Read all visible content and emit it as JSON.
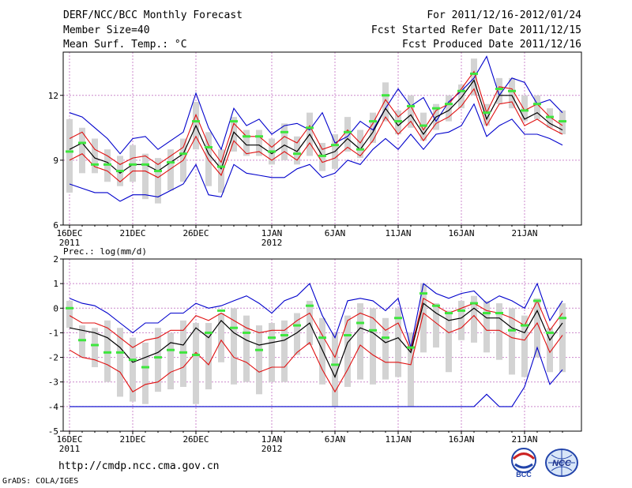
{
  "header": {
    "title": "DERF/NCC/BCC Monthly Forecast",
    "member_size": "Member Size=40",
    "variable": "Mean Surf. Temp.: °C",
    "period": "For 2011/12/16-2012/01/24",
    "started": "Fcst Started Refer Date 2011/12/15",
    "produced": "Fcst Produced Date 2011/12/16"
  },
  "footer": {
    "url": "http://cmdp.ncc.cma.gov.cn",
    "grads": "GrADS: COLA/IGES",
    "logo_left": "BCC",
    "logo_right": "NCC"
  },
  "colors": {
    "frame": "#000000",
    "grid": "#cc88cc",
    "spread": "#d3d3d3",
    "median": "#3ee63e",
    "mean": "#000000",
    "sd": "#e01010",
    "extreme": "#0000cc"
  },
  "chart_data": [
    {
      "type": "line",
      "title": "Mean Surf. Temp.: °C",
      "ylim": [
        6,
        14
      ],
      "yticks": [
        6,
        9,
        12
      ],
      "x": [
        1,
        2,
        3,
        4,
        5,
        6,
        7,
        8,
        9,
        10,
        11,
        12,
        13,
        14,
        15,
        16,
        17,
        18,
        19,
        20,
        21,
        22,
        23,
        24,
        25,
        26,
        27,
        28,
        29,
        30,
        31,
        32,
        33,
        34,
        35,
        36,
        37,
        38,
        39,
        40
      ],
      "xticks": [
        {
          "x": 1,
          "label": "16DEC",
          "sub": "2011"
        },
        {
          "x": 6,
          "label": "21DEC"
        },
        {
          "x": 11,
          "label": "26DEC"
        },
        {
          "x": 17,
          "label": "1JAN",
          "sub": "2012"
        },
        {
          "x": 22,
          "label": "6JAN"
        },
        {
          "x": 27,
          "label": "11JAN"
        },
        {
          "x": 32,
          "label": "16JAN"
        },
        {
          "x": 37,
          "label": "21JAN"
        }
      ],
      "series": [
        {
          "name": "max",
          "values": [
            11.2,
            11.0,
            10.5,
            10.0,
            9.3,
            10.0,
            10.1,
            9.5,
            9.9,
            10.3,
            12.1,
            10.5,
            9.5,
            11.4,
            10.6,
            10.9,
            10.2,
            10.6,
            10.7,
            10.4,
            11.2,
            9.8,
            10.1,
            10.8,
            10.4,
            11.4,
            12.3,
            11.5,
            11.9,
            10.8,
            11.7,
            12.2,
            12.8,
            13.8,
            12.0,
            12.8,
            12.6,
            11.6,
            11.8,
            11.2
          ]
        },
        {
          "name": "mean_plus_sd",
          "values": [
            10.0,
            10.3,
            9.5,
            9.2,
            8.8,
            9.1,
            9.2,
            8.8,
            9.2,
            9.6,
            11.1,
            9.7,
            8.9,
            10.7,
            10.1,
            10.1,
            9.6,
            10.1,
            9.8,
            10.6,
            9.5,
            9.7,
            10.4,
            9.8,
            10.7,
            11.8,
            11.0,
            11.5,
            10.4,
            11.3,
            11.6,
            12.3,
            13.1,
            11.2,
            12.4,
            12.3,
            11.3,
            11.6,
            11.0,
            10.6
          ]
        },
        {
          "name": "mean",
          "values": [
            9.5,
            9.8,
            9.1,
            8.9,
            8.4,
            8.8,
            8.8,
            8.5,
            8.9,
            9.3,
            10.6,
            9.3,
            8.6,
            10.3,
            9.7,
            9.7,
            9.3,
            9.7,
            9.4,
            10.2,
            9.2,
            9.4,
            10.0,
            9.5,
            10.3,
            11.4,
            10.6,
            11.1,
            10.2,
            11.0,
            11.3,
            11.9,
            12.7,
            10.9,
            12.0,
            12.0,
            10.9,
            11.2,
            10.7,
            10.4
          ]
        },
        {
          "name": "mean_minus_sd",
          "values": [
            9.0,
            9.3,
            8.7,
            8.5,
            8.0,
            8.5,
            8.5,
            8.2,
            8.6,
            9.0,
            10.1,
            9.0,
            8.3,
            9.9,
            9.3,
            9.4,
            9.0,
            9.4,
            9.0,
            9.8,
            8.9,
            9.1,
            9.6,
            9.2,
            9.9,
            11.0,
            10.2,
            10.8,
            9.9,
            10.7,
            11.0,
            11.5,
            12.3,
            10.6,
            11.6,
            11.7,
            10.6,
            10.9,
            10.5,
            10.2
          ]
        },
        {
          "name": "min",
          "values": [
            7.9,
            7.7,
            7.5,
            7.5,
            7.1,
            7.4,
            7.4,
            7.3,
            7.6,
            7.9,
            8.8,
            7.4,
            7.3,
            8.8,
            8.4,
            8.3,
            8.2,
            8.2,
            8.6,
            8.8,
            8.2,
            8.4,
            9.0,
            8.8,
            9.5,
            10.0,
            9.5,
            10.2,
            9.5,
            10.2,
            10.3,
            10.6,
            11.6,
            10.1,
            10.6,
            10.9,
            10.2,
            10.2,
            10.0,
            9.7
          ]
        },
        {
          "name": "median",
          "values": [
            9.4,
            9.8,
            8.8,
            8.8,
            8.5,
            8.8,
            8.8,
            8.5,
            8.9,
            9.3,
            10.8,
            9.6,
            8.7,
            10.8,
            10.1,
            10.1,
            9.4,
            10.3,
            9.3,
            10.5,
            9.2,
            9.7,
            10.3,
            9.5,
            10.8,
            12.0,
            10.8,
            11.5,
            10.6,
            11.4,
            11.6,
            12.2,
            13.0,
            11.2,
            12.3,
            12.2,
            11.3,
            11.6,
            11.0,
            10.8
          ]
        },
        {
          "name": "spread_top",
          "values": [
            10.9,
            10.5,
            10.0,
            9.5,
            9.2,
            9.7,
            9.3,
            9.1,
            9.5,
            10.0,
            11.7,
            10.3,
            9.5,
            11.0,
            10.4,
            10.4,
            10.0,
            10.7,
            10.1,
            11.2,
            9.8,
            10.2,
            11.0,
            10.4,
            11.2,
            12.6,
            11.3,
            12.0,
            11.2,
            11.6,
            12.0,
            12.5,
            13.7,
            11.6,
            12.8,
            12.8,
            12.0,
            12.0,
            11.4,
            11.3
          ]
        },
        {
          "name": "spread_bottom",
          "values": [
            7.5,
            8.4,
            8.4,
            8.0,
            7.8,
            8.0,
            7.2,
            7.0,
            7.6,
            8.0,
            9.5,
            7.8,
            7.5,
            9.4,
            9.2,
            9.2,
            8.8,
            9.0,
            8.8,
            9.2,
            8.5,
            8.6,
            9.4,
            9.1,
            9.8,
            10.8,
            10.2,
            10.5,
            9.9,
            10.4,
            10.8,
            11.4,
            12.0,
            10.6,
            11.6,
            11.4,
            10.8,
            10.9,
            10.5,
            10.2
          ]
        }
      ]
    },
    {
      "type": "line",
      "title": "Prec.: log(mm/d)",
      "ylim": [
        -5,
        2
      ],
      "yticks": [
        -5,
        -4,
        -3,
        -2,
        -1,
        0,
        1,
        2
      ],
      "x": [
        1,
        2,
        3,
        4,
        5,
        6,
        7,
        8,
        9,
        10,
        11,
        12,
        13,
        14,
        15,
        16,
        17,
        18,
        19,
        20,
        21,
        22,
        23,
        24,
        25,
        26,
        27,
        28,
        29,
        30,
        31,
        32,
        33,
        34,
        35,
        36,
        37,
        38,
        39,
        40
      ],
      "xticks": [
        {
          "x": 1,
          "label": "16DEC",
          "sub": "2011"
        },
        {
          "x": 6,
          "label": "21DEC"
        },
        {
          "x": 11,
          "label": "26DEC"
        },
        {
          "x": 17,
          "label": "1JAN",
          "sub": "2012"
        },
        {
          "x": 22,
          "label": "6JAN"
        },
        {
          "x": 27,
          "label": "11JAN"
        },
        {
          "x": 32,
          "label": "16JAN"
        },
        {
          "x": 37,
          "label": "21JAN"
        }
      ],
      "series": [
        {
          "name": "max",
          "values": [
            0.4,
            0.2,
            0.1,
            -0.2,
            -0.6,
            -1.0,
            -0.6,
            -0.6,
            -0.2,
            -0.2,
            0.2,
            0.0,
            0.1,
            0.3,
            0.5,
            0.2,
            -0.2,
            0.3,
            0.5,
            1.0,
            -0.3,
            -1.2,
            0.3,
            0.4,
            0.3,
            -0.1,
            0.4,
            -1.6,
            1.0,
            0.6,
            0.4,
            0.6,
            0.7,
            0.2,
            0.5,
            0.3,
            0.0,
            1.0,
            -0.5,
            0.3
          ]
        },
        {
          "name": "mean_plus_sd",
          "values": [
            -0.3,
            -0.6,
            -0.6,
            -0.8,
            -1.2,
            -1.6,
            -1.3,
            -1.2,
            -0.9,
            -0.9,
            -0.3,
            -0.5,
            -0.2,
            -0.5,
            -0.8,
            -1.0,
            -0.9,
            -0.9,
            -0.5,
            -0.2,
            -1.1,
            -2.0,
            -0.5,
            -0.2,
            -0.4,
            -0.9,
            -0.6,
            -1.7,
            0.4,
            0.1,
            -0.2,
            0.0,
            0.2,
            -0.1,
            -0.2,
            -0.4,
            -0.7,
            0.3,
            -0.9,
            -0.2
          ]
        },
        {
          "name": "mean",
          "values": [
            -0.8,
            -0.9,
            -1.0,
            -1.2,
            -1.6,
            -2.2,
            -2.0,
            -1.8,
            -1.4,
            -1.5,
            -0.8,
            -1.2,
            -0.5,
            -1.0,
            -1.3,
            -1.5,
            -1.4,
            -1.3,
            -1.0,
            -0.6,
            -1.7,
            -2.8,
            -1.4,
            -0.8,
            -1.0,
            -1.4,
            -1.2,
            -1.8,
            0.2,
            -0.2,
            -0.5,
            -0.4,
            0.0,
            -0.4,
            -0.4,
            -0.8,
            -1.0,
            -0.1,
            -1.3,
            -0.6
          ]
        },
        {
          "name": "mean_minus_sd",
          "values": [
            -1.7,
            -2.0,
            -2.1,
            -2.3,
            -2.6,
            -3.4,
            -3.1,
            -3.0,
            -2.6,
            -2.4,
            -1.8,
            -2.3,
            -1.3,
            -2.0,
            -2.2,
            -2.6,
            -2.4,
            -2.4,
            -1.8,
            -1.4,
            -2.5,
            -3.4,
            -2.5,
            -1.5,
            -1.9,
            -2.2,
            -2.2,
            -2.3,
            -0.2,
            -0.6,
            -1.0,
            -0.8,
            -0.3,
            -0.9,
            -0.9,
            -1.2,
            -1.3,
            -0.6,
            -1.8,
            -1.1
          ]
        },
        {
          "name": "min",
          "values": [
            -4.0,
            -4.0,
            -4.0,
            -4.0,
            -4.0,
            -4.0,
            -4.0,
            -4.0,
            -4.0,
            -4.0,
            -4.0,
            -4.0,
            -4.0,
            -4.0,
            -4.0,
            -4.0,
            -4.0,
            -4.0,
            -4.0,
            -4.0,
            -4.0,
            -4.0,
            -4.0,
            -4.0,
            -4.0,
            -4.0,
            -4.0,
            -4.0,
            -4.0,
            -4.0,
            -4.0,
            -4.0,
            -4.0,
            -3.5,
            -4.0,
            -4.0,
            -3.2,
            -1.6,
            -3.1,
            -2.5
          ]
        },
        {
          "name": "median",
          "values": [
            0.0,
            -1.3,
            -1.5,
            -1.8,
            -1.8,
            -2.1,
            -2.4,
            -2.0,
            -1.7,
            -1.8,
            -1.9,
            -1.0,
            -0.1,
            -0.8,
            -1.0,
            -1.7,
            -1.2,
            -1.1,
            -0.7,
            0.1,
            -1.2,
            -2.3,
            -1.1,
            -0.6,
            -0.9,
            -1.2,
            -0.4,
            -1.6,
            0.6,
            0.1,
            -0.2,
            -0.1,
            0.2,
            -0.2,
            -0.2,
            -0.9,
            -0.7,
            0.3,
            -1.0,
            -0.4
          ]
        },
        {
          "name": "spread_top",
          "values": [
            0.3,
            -0.7,
            -0.8,
            -0.5,
            -0.8,
            -1.2,
            -1.4,
            -0.8,
            -1.0,
            -0.5,
            -0.6,
            -0.6,
            -0.2,
            0.0,
            -0.3,
            -0.7,
            -0.6,
            -0.5,
            -0.2,
            0.3,
            -0.4,
            -1.0,
            -0.3,
            0.2,
            0.0,
            -0.4,
            0.0,
            -1.0,
            1.0,
            0.2,
            -0.1,
            0.3,
            0.5,
            0.3,
            0.2,
            0.0,
            -0.3,
            0.4,
            -0.8,
            0.2
          ]
        },
        {
          "name": "spread_bottom",
          "values": [
            -0.8,
            -2.0,
            -2.4,
            -3.0,
            -3.6,
            -3.8,
            -3.9,
            -3.4,
            -3.3,
            -3.2,
            -3.9,
            -3.3,
            -2.2,
            -3.1,
            -3.0,
            -3.5,
            -3.0,
            -3.0,
            -1.9,
            -1.5,
            -3.1,
            -4.0,
            -3.2,
            -2.9,
            -3.1,
            -2.9,
            -2.8,
            -4.0,
            -1.8,
            -1.6,
            -2.6,
            -1.3,
            -1.4,
            -1.8,
            -2.1,
            -2.7,
            -2.8,
            -2.0,
            -2.6,
            -2.6
          ]
        }
      ]
    }
  ]
}
